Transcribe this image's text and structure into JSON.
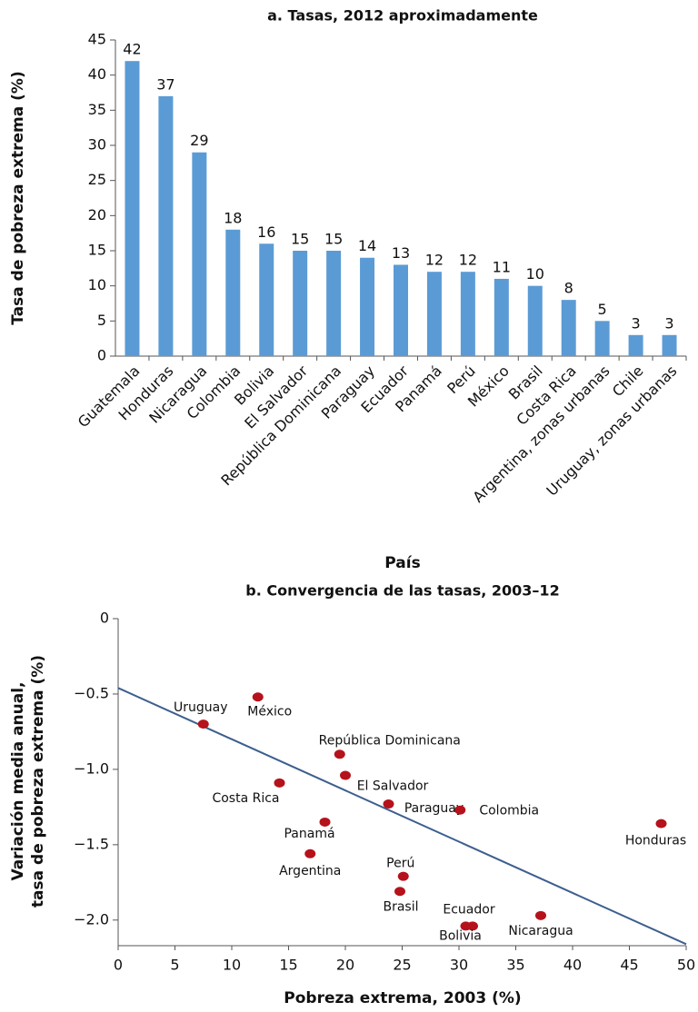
{
  "chart_data": [
    {
      "type": "bar",
      "title": "a. Tasas, 2012 aproximadamente",
      "xlabel": "País",
      "ylabel": [
        "Tasa de pobreza extrema (%)"
      ],
      "categories": [
        "Guatemala",
        "Honduras",
        "Nicaragua",
        "Colombia",
        "Bolivia",
        "El Salvador",
        "República Dominicana",
        "Paraguay",
        "Ecuador",
        "Panamá",
        "Perú",
        "México",
        "Brasil",
        "Costa Rica",
        "Argentina, zonas urbanas",
        "Chile",
        "Uruguay, zonas urbanas"
      ],
      "values": [
        42,
        37,
        29,
        18,
        16,
        15,
        15,
        14,
        13,
        12,
        12,
        11,
        10,
        8,
        5,
        3,
        3
      ],
      "color": "#5b9bd5",
      "ylim": [
        0,
        45
      ],
      "yticks": [
        0,
        5,
        10,
        15,
        20,
        25,
        30,
        35,
        40,
        45
      ],
      "grid": false
    },
    {
      "type": "scatter",
      "title": "b. Convergencia de las tasas, 2003–12",
      "xlabel": "Pobreza extrema, 2003 (%)",
      "ylabel": [
        "Variación media anual,",
        "tasa de pobreza extrema (%)"
      ],
      "points": [
        {
          "label": "Uruguay",
          "x": 7.5,
          "y": -0.7
        },
        {
          "label": "México",
          "x": 12.3,
          "y": -0.52
        },
        {
          "label": "República Dominicana",
          "x": 19.5,
          "y": -0.9
        },
        {
          "label": "El Salvador",
          "x": 20.0,
          "y": -1.04
        },
        {
          "label": "Costa Rica",
          "x": 14.2,
          "y": -1.09
        },
        {
          "label": "Paraguay",
          "x": 23.8,
          "y": -1.23
        },
        {
          "label": "Panamá",
          "x": 18.2,
          "y": -1.35
        },
        {
          "label": "Colombia",
          "x": 30.1,
          "y": -1.27
        },
        {
          "label": "Honduras",
          "x": 47.8,
          "y": -1.36
        },
        {
          "label": "Argentina",
          "x": 16.9,
          "y": -1.56
        },
        {
          "label": "Perú",
          "x": 25.1,
          "y": -1.71
        },
        {
          "label": "Brasil",
          "x": 24.8,
          "y": -1.81
        },
        {
          "label": "Ecuador",
          "x": 31.2,
          "y": -2.04
        },
        {
          "label": "Bolivia",
          "x": 30.6,
          "y": -2.04
        },
        {
          "label": "Nicaragua",
          "x": 37.2,
          "y": -1.97
        }
      ],
      "color": "#b5121b",
      "trendline": {
        "x": [
          0,
          50
        ],
        "y": [
          -0.46,
          -2.16
        ],
        "color": "#3d5f8f"
      },
      "xlim": [
        0,
        50
      ],
      "xticks": [
        0,
        5,
        10,
        15,
        20,
        25,
        30,
        35,
        40,
        45,
        50
      ],
      "ylim": [
        -2.17,
        0
      ],
      "yticks": [
        0,
        {
          "value": -0.5,
          "label": "−0.5"
        },
        {
          "value": -1.0,
          "label": "−1.0"
        },
        {
          "value": -1.5,
          "label": "−1.5"
        },
        {
          "value": -2.0,
          "label": "−2.0"
        }
      ],
      "grid": false
    }
  ]
}
